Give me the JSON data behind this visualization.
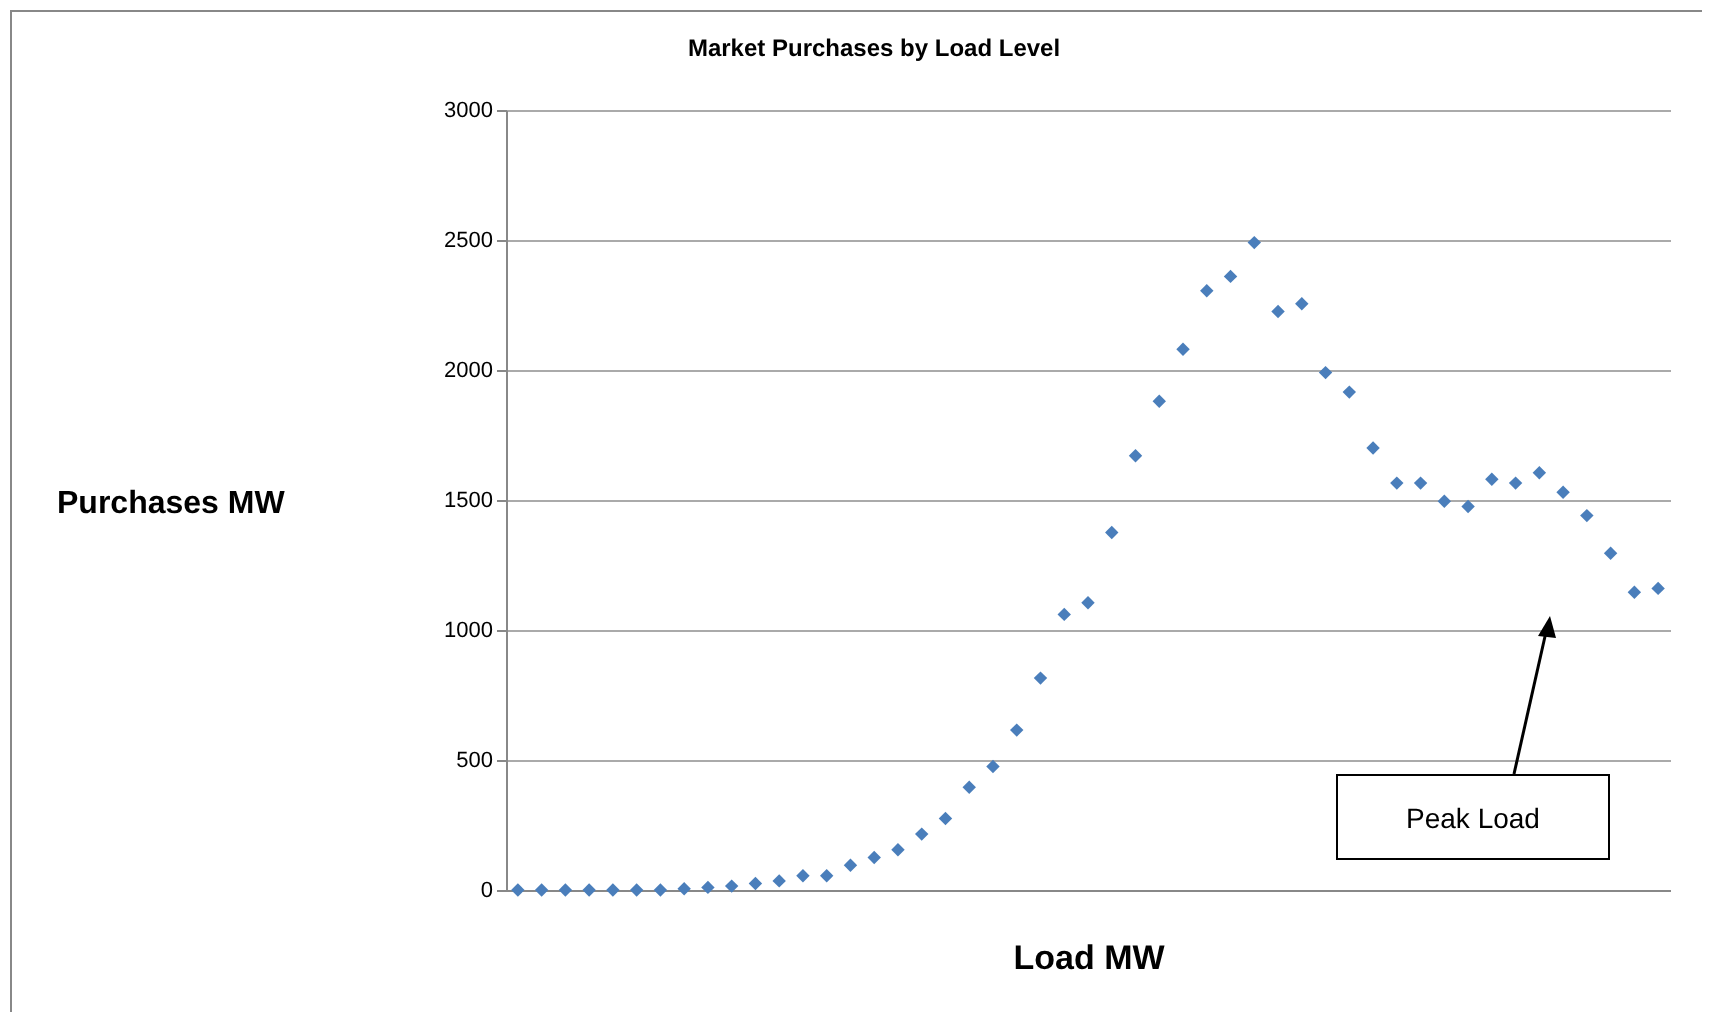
{
  "chart_data": {
    "type": "scatter",
    "title": "Market Purchases by Load Level",
    "xlabel": "Load MW",
    "ylabel": "Purchases MW",
    "categories": [
      null,
      null,
      null,
      null,
      null,
      null,
      null,
      null,
      null,
      null,
      null,
      null,
      null,
      null,
      null,
      null,
      null,
      null,
      null,
      null,
      null,
      null,
      null,
      null,
      null,
      null,
      null,
      null,
      null,
      null,
      null,
      null,
      null,
      null,
      null,
      null,
      null,
      null,
      null,
      null,
      null,
      null,
      null,
      null,
      null,
      null,
      null,
      null,
      null
    ],
    "values": [
      0,
      0,
      0,
      0,
      0,
      0,
      0,
      5,
      10,
      15,
      25,
      35,
      55,
      55,
      95,
      125,
      155,
      215,
      275,
      395,
      475,
      615,
      815,
      1060,
      1105,
      1375,
      1670,
      1880,
      2080,
      2305,
      2360,
      2490,
      2225,
      2255,
      1990,
      1915,
      1700,
      1565,
      1565,
      1495,
      1475,
      1580,
      1565,
      1605,
      1530,
      1440,
      1295,
      1145,
      1160
    ],
    "color": "#4a7ebb",
    "marker": "diamond",
    "ylim": [
      0,
      3000
    ],
    "yticks": [
      0,
      500,
      1000,
      1500,
      2000,
      2500,
      3000
    ],
    "grid": "y",
    "annotations": [
      "Peak Load"
    ]
  }
}
